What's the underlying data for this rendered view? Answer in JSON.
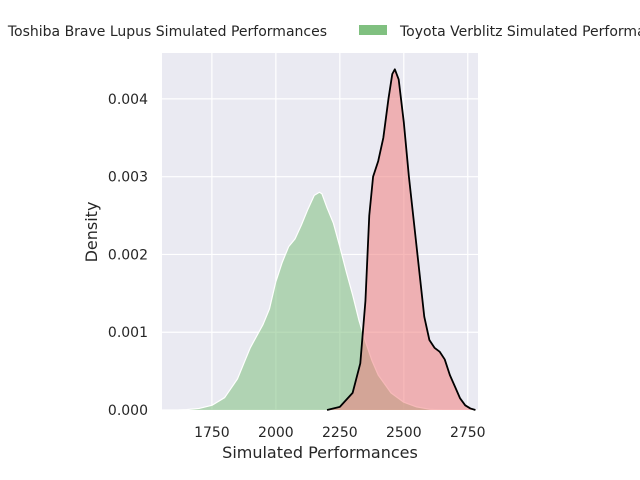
{
  "chart_data": {
    "type": "area",
    "title": "",
    "xlabel": "Simulated Performances",
    "ylabel": "Density",
    "xlim": [
      1555,
      2790
    ],
    "ylim": [
      0,
      0.00459
    ],
    "xticks": [
      1750,
      2000,
      2250,
      2500,
      2750
    ],
    "xtick_labels": [
      "1750",
      "2000",
      "2250",
      "2500",
      "2750"
    ],
    "yticks": [
      0,
      0.001,
      0.002,
      0.003,
      0.004
    ],
    "ytick_labels": [
      "0.000",
      "0.001",
      "0.002",
      "0.003",
      "0.004"
    ],
    "grid": true,
    "legend_placement": "top-center, outside plot",
    "series": [
      {
        "name": "Toshiba Brave Lupus Simulated Performances",
        "legend_label": "Toshiba Brave Lupus Simulated Performances",
        "color": "#f08080",
        "line_color": "#000000",
        "x": [
          2200,
          2250,
          2300,
          2330,
          2350,
          2365,
          2380,
          2400,
          2420,
          2440,
          2455,
          2465,
          2480,
          2500,
          2520,
          2540,
          2560,
          2580,
          2600,
          2620,
          2640,
          2660,
          2680,
          2700,
          2720,
          2740,
          2760,
          2780
        ],
        "values": [
          0,
          4e-05,
          0.00022,
          0.0006,
          0.0014,
          0.0025,
          0.003,
          0.0032,
          0.0035,
          0.004,
          0.00432,
          0.00438,
          0.00425,
          0.0037,
          0.003,
          0.0024,
          0.0018,
          0.0012,
          0.0009,
          0.0008,
          0.00075,
          0.00065,
          0.00045,
          0.0003,
          0.00015,
          6e-05,
          2e-05,
          0
        ]
      },
      {
        "name": "Toyota Verblitz Simulated Performances",
        "legend_label": "Toyota Verblitz Simulated Performances",
        "color": "#80c080",
        "line_color": "#ffffff",
        "x": [
          1620,
          1650,
          1700,
          1750,
          1800,
          1850,
          1875,
          1900,
          1925,
          1950,
          1975,
          2000,
          2025,
          2050,
          2075,
          2100,
          2125,
          2150,
          2170,
          2180,
          2200,
          2225,
          2250,
          2275,
          2300,
          2325,
          2350,
          2375,
          2400,
          2450,
          2500,
          2550,
          2600,
          2650,
          2700,
          2750,
          2780
        ],
        "values": [
          0,
          5e-06,
          2e-05,
          6e-05,
          0.00016,
          0.0004,
          0.0006,
          0.0008,
          0.00095,
          0.0011,
          0.0013,
          0.00165,
          0.0019,
          0.0021,
          0.0022,
          0.00238,
          0.00258,
          0.00276,
          0.0028,
          0.00278,
          0.0026,
          0.0024,
          0.0021,
          0.00178,
          0.00148,
          0.00115,
          0.00088,
          0.00064,
          0.00045,
          0.00022,
          0.0001,
          4e-05,
          1e-05,
          0,
          0,
          0,
          0
        ]
      }
    ]
  }
}
